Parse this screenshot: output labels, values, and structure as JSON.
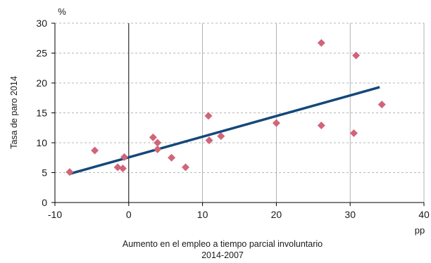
{
  "chart_data": {
    "type": "scatter",
    "xlabel_lines": [
      "Aumento en el empleo a tiempo parcial involuntario",
      "2014-2007"
    ],
    "ylabel": "Tasa de paro 2014",
    "x_unit": "pp",
    "y_unit": "%",
    "xlim": [
      -10,
      40
    ],
    "ylim": [
      0,
      30
    ],
    "x_ticks": [
      -10,
      0,
      10,
      20,
      30,
      40
    ],
    "y_ticks": [
      0,
      5,
      10,
      15,
      20,
      25,
      30
    ],
    "grid": "dashed horizontal, solid vertical",
    "points": [
      {
        "x": -8.0,
        "y": 5.1
      },
      {
        "x": -4.6,
        "y": 8.7
      },
      {
        "x": -1.5,
        "y": 5.9
      },
      {
        "x": -0.8,
        "y": 5.7
      },
      {
        "x": -0.6,
        "y": 7.6
      },
      {
        "x": 3.3,
        "y": 10.9
      },
      {
        "x": 3.9,
        "y": 10.0
      },
      {
        "x": 3.9,
        "y": 8.9
      },
      {
        "x": 5.8,
        "y": 7.5
      },
      {
        "x": 7.7,
        "y": 5.9
      },
      {
        "x": 10.8,
        "y": 14.5
      },
      {
        "x": 10.9,
        "y": 10.4
      },
      {
        "x": 12.5,
        "y": 11.1
      },
      {
        "x": 20.0,
        "y": 13.3
      },
      {
        "x": 26.1,
        "y": 26.7
      },
      {
        "x": 26.1,
        "y": 12.9
      },
      {
        "x": 30.5,
        "y": 11.6
      },
      {
        "x": 30.8,
        "y": 24.6
      },
      {
        "x": 34.3,
        "y": 16.4
      }
    ],
    "trendline": {
      "x": [
        -8.0,
        34.0
      ],
      "y": [
        4.8,
        19.3
      ]
    },
    "colors": {
      "points": "#d0657a",
      "trendline": "#14487a",
      "grid": "#a0a0a0",
      "axis": "#000000"
    }
  }
}
